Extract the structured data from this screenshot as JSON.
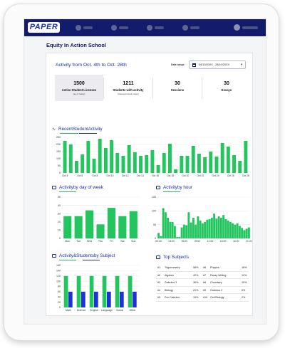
{
  "brand": {
    "logo_text": "PAPER"
  },
  "page": {
    "school_title": "Equity In Action School"
  },
  "summary": {
    "title": "Activity from Oct. 4th to Oct. 28th",
    "date_range_label": "Date range",
    "date_range_value": "04/10/20XX - 28/10/20XX"
  },
  "stats": [
    {
      "value": "1500",
      "label": "Active Student Licenses",
      "sub": "(as of today)"
    },
    {
      "value": "1211",
      "label": "Students with activity",
      "sub": "(selected week range)"
    },
    {
      "value": "30",
      "label": "Sessions",
      "sub": ""
    },
    {
      "value": "30",
      "label": "Essays",
      "sub": ""
    }
  ],
  "colors": {
    "navy": "#121c6b",
    "accent": "#1a2ea8",
    "green": "#22c55e",
    "blue": "#1f32d6"
  },
  "recent": {
    "title_parts": [
      "Recent ",
      "Student",
      " Activity"
    ],
    "chart_data": {
      "type": "bar",
      "y_ticks": [
        "250",
        "200",
        "150",
        "100",
        "50",
        "0"
      ],
      "ylim": [
        0,
        250
      ],
      "x_labels": [
        "Oct 4",
        "Oct 6",
        "Oct 8",
        "Oct 10",
        "Oct 12",
        "Oct 14",
        "Oct 16",
        "Oct 18",
        "Oct 20",
        "Oct 22",
        "Oct 24",
        "Oct 26",
        "Oct 28"
      ],
      "values": [
        225,
        200,
        85,
        130,
        225,
        100,
        240,
        175,
        230,
        140,
        120,
        195,
        145,
        120,
        125,
        160,
        55,
        140,
        205,
        25,
        120,
        120,
        190,
        135,
        110,
        150,
        115,
        210,
        185,
        125,
        85,
        225
      ]
    }
  },
  "by_day": {
    "title_parts": [
      "Activity",
      " by day of week"
    ],
    "chart_data": {
      "type": "bar",
      "y_ticks": [
        "50",
        "40",
        "30",
        "20",
        "10",
        "0"
      ],
      "ylim": [
        0,
        50
      ],
      "categories": [
        "Mon",
        "Tue",
        "Wed",
        "Thu",
        "Fri",
        "Sat",
        "Sun"
      ],
      "values": [
        27,
        27,
        34,
        17,
        37,
        27,
        33
      ]
    }
  },
  "by_hour": {
    "title_parts": [
      "Activity",
      " by hour"
    ],
    "chart_data": {
      "type": "bar",
      "y_ticks": [
        "150",
        "100",
        "50",
        "0"
      ],
      "ylim": [
        0,
        150
      ],
      "x_labels": [
        "00:00",
        "03:00",
        "06:00",
        "09:00",
        "12:00",
        "15:00",
        "18:00",
        "21:00"
      ],
      "values": [
        20,
        8,
        110,
        95,
        75,
        60,
        60,
        45,
        5,
        5,
        40,
        50,
        48,
        95,
        58,
        75,
        50,
        80,
        65,
        55,
        60,
        68,
        70,
        75,
        90,
        72,
        80,
        75,
        85,
        70,
        65,
        60,
        55,
        50,
        55,
        45,
        38,
        30,
        35,
        40
      ]
    }
  },
  "by_subject": {
    "title_parts": [
      "Activity",
      " & ",
      "Students",
      " by Subject"
    ],
    "chart_data": {
      "type": "bar",
      "y_ticks": [
        "160",
        "140",
        "120",
        "100",
        "80",
        "60",
        "40",
        "20",
        "0"
      ],
      "ylim": [
        0,
        160
      ],
      "categories": [
        "Math",
        "Science",
        "English",
        "Language",
        "Social",
        "Other"
      ],
      "series": [
        {
          "values": [
            120,
            120,
            120,
            120,
            120,
            120
          ]
        },
        {
          "values": [
            60,
            60,
            60,
            60,
            60,
            60
          ]
        }
      ]
    }
  },
  "top_subjects": {
    "title": "Top Subjects",
    "left": [
      {
        "rank": "#1",
        "name": "Trigonometry",
        "pct": "58%"
      },
      {
        "rank": "#2",
        "name": "Algebra",
        "pct": "42%"
      },
      {
        "rank": "#3",
        "name": "Calculus 1",
        "pct": "36%"
      },
      {
        "rank": "#4",
        "name": "Biology",
        "pct": "21%"
      },
      {
        "rank": "#5",
        "name": "Pre-Calculus",
        "pct": "19%"
      }
    ],
    "right": [
      {
        "rank": "#6",
        "name": "Physics",
        "pct": "16%"
      },
      {
        "rank": "#7",
        "name": "Essay Writing",
        "pct": "12%"
      },
      {
        "rank": "#8",
        "name": "Chemistry",
        "pct": "10%"
      },
      {
        "rank": "#9",
        "name": "Calculus 2",
        "pct": "5%"
      },
      {
        "rank": "#10",
        "name": "Cell Biology",
        "pct": "2%"
      }
    ]
  }
}
